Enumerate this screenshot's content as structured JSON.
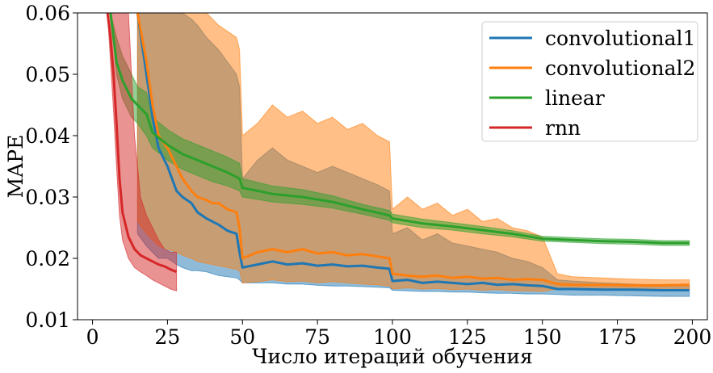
{
  "chart_data": {
    "type": "line",
    "title": "",
    "xlabel": "Число итераций обучения",
    "ylabel": "MAPE",
    "xlim": [
      -5,
      205
    ],
    "ylim": [
      0.01,
      0.06
    ],
    "xticks": [
      0,
      25,
      50,
      75,
      100,
      125,
      150,
      175,
      200
    ],
    "yticks": [
      0.01,
      0.02,
      0.03,
      0.04,
      0.05,
      0.06
    ],
    "xtick_labels": [
      "0",
      "25",
      "50",
      "75",
      "100",
      "125",
      "150",
      "175",
      "200"
    ],
    "ytick_labels": [
      "0.01",
      "0.02",
      "0.03",
      "0.04",
      "0.05",
      "0.06"
    ],
    "legend_position": "top-right",
    "grid": false,
    "series": [
      {
        "name": "convolutional1",
        "color": "#1f77b4",
        "x": [
          15,
          18,
          20,
          22,
          25,
          28,
          30,
          33,
          35,
          38,
          40,
          42,
          45,
          48,
          49,
          50,
          55,
          60,
          65,
          70,
          75,
          80,
          85,
          90,
          95,
          99,
          100,
          105,
          110,
          115,
          120,
          125,
          130,
          135,
          140,
          145,
          150,
          155,
          160,
          170,
          180,
          190,
          199
        ],
        "mean": [
          0.06,
          0.05,
          0.043,
          0.038,
          0.035,
          0.031,
          0.03,
          0.029,
          0.0275,
          0.0265,
          0.026,
          0.0255,
          0.0245,
          0.024,
          0.021,
          0.0185,
          0.019,
          0.0195,
          0.019,
          0.0192,
          0.0188,
          0.019,
          0.0187,
          0.0188,
          0.0185,
          0.0183,
          0.0163,
          0.0165,
          0.016,
          0.0162,
          0.016,
          0.0158,
          0.016,
          0.0157,
          0.0158,
          0.0156,
          0.0155,
          0.015,
          0.015,
          0.0149,
          0.0149,
          0.0148,
          0.0148
        ],
        "lower": [
          0.024,
          0.022,
          0.021,
          0.02,
          0.02,
          0.019,
          0.0185,
          0.018,
          0.018,
          0.0178,
          0.0175,
          0.0172,
          0.017,
          0.0168,
          0.0165,
          0.016,
          0.016,
          0.016,
          0.0158,
          0.0158,
          0.0156,
          0.0155,
          0.0155,
          0.0154,
          0.0153,
          0.0152,
          0.0148,
          0.0147,
          0.0146,
          0.0146,
          0.0145,
          0.0145,
          0.0144,
          0.0143,
          0.0143,
          0.0142,
          0.0142,
          0.0141,
          0.014,
          0.014,
          0.0139,
          0.0138,
          0.0138
        ],
        "upper": [
          0.06,
          0.06,
          0.06,
          0.06,
          0.06,
          0.06,
          0.06,
          0.059,
          0.058,
          0.056,
          0.055,
          0.054,
          0.052,
          0.05,
          0.048,
          0.033,
          0.036,
          0.038,
          0.036,
          0.035,
          0.034,
          0.035,
          0.034,
          0.033,
          0.032,
          0.031,
          0.024,
          0.025,
          0.023,
          0.024,
          0.0225,
          0.022,
          0.0215,
          0.021,
          0.02,
          0.0195,
          0.0185,
          0.0165,
          0.0163,
          0.016,
          0.0158,
          0.0156,
          0.0156
        ]
      },
      {
        "name": "convolutional2",
        "color": "#ff7f0e",
        "x": [
          15,
          18,
          20,
          22,
          25,
          28,
          30,
          33,
          35,
          38,
          40,
          42,
          45,
          48,
          49,
          50,
          55,
          60,
          65,
          70,
          75,
          80,
          85,
          90,
          95,
          99,
          100,
          105,
          110,
          115,
          120,
          125,
          130,
          135,
          140,
          145,
          150,
          155,
          160,
          170,
          180,
          190,
          199
        ],
        "mean": [
          0.06,
          0.052,
          0.045,
          0.04,
          0.038,
          0.035,
          0.033,
          0.031,
          0.03,
          0.0295,
          0.029,
          0.029,
          0.028,
          0.0275,
          0.025,
          0.02,
          0.021,
          0.0215,
          0.021,
          0.0215,
          0.0208,
          0.021,
          0.0205,
          0.0207,
          0.0203,
          0.02,
          0.0175,
          0.0172,
          0.017,
          0.0172,
          0.0168,
          0.017,
          0.0167,
          0.0168,
          0.0165,
          0.0166,
          0.0165,
          0.0158,
          0.0157,
          0.0157,
          0.0156,
          0.0156,
          0.0157
        ],
        "lower": [
          0.026,
          0.024,
          0.023,
          0.022,
          0.0215,
          0.021,
          0.0205,
          0.02,
          0.0195,
          0.0192,
          0.019,
          0.0188,
          0.0185,
          0.0182,
          0.018,
          0.016,
          0.0162,
          0.0165,
          0.0162,
          0.0163,
          0.016,
          0.0162,
          0.016,
          0.0158,
          0.0157,
          0.0155,
          0.015,
          0.0152,
          0.015,
          0.0151,
          0.0149,
          0.015,
          0.0148,
          0.0149,
          0.0147,
          0.0147,
          0.0146,
          0.015,
          0.015,
          0.015,
          0.015,
          0.0149,
          0.015
        ],
        "upper": [
          0.06,
          0.06,
          0.06,
          0.06,
          0.06,
          0.06,
          0.06,
          0.06,
          0.06,
          0.06,
          0.059,
          0.058,
          0.057,
          0.056,
          0.054,
          0.04,
          0.042,
          0.045,
          0.043,
          0.044,
          0.042,
          0.043,
          0.041,
          0.042,
          0.04,
          0.039,
          0.028,
          0.03,
          0.028,
          0.029,
          0.027,
          0.028,
          0.026,
          0.0265,
          0.025,
          0.0245,
          0.0235,
          0.0175,
          0.017,
          0.0168,
          0.0166,
          0.0165,
          0.0165
        ]
      },
      {
        "name": "linear",
        "color": "#2ca02c",
        "x": [
          6,
          8,
          10,
          13,
          15,
          18,
          20,
          25,
          30,
          35,
          40,
          45,
          49,
          50,
          55,
          60,
          70,
          80,
          90,
          99,
          100,
          110,
          120,
          130,
          140,
          150,
          160,
          170,
          180,
          190,
          199
        ],
        "mean": [
          0.06,
          0.052,
          0.049,
          0.046,
          0.045,
          0.0435,
          0.0405,
          0.0385,
          0.037,
          0.036,
          0.035,
          0.034,
          0.033,
          0.0315,
          0.031,
          0.0305,
          0.03,
          0.0292,
          0.028,
          0.027,
          0.0265,
          0.0257,
          0.0252,
          0.0246,
          0.024,
          0.0232,
          0.023,
          0.0228,
          0.0227,
          0.0225,
          0.0225
        ],
        "lower": [
          0.06,
          0.05,
          0.046,
          0.043,
          0.042,
          0.04,
          0.038,
          0.036,
          0.0345,
          0.0335,
          0.0325,
          0.0318,
          0.031,
          0.03,
          0.0296,
          0.0292,
          0.0288,
          0.0282,
          0.0272,
          0.0262,
          0.0258,
          0.025,
          0.0246,
          0.024,
          0.0235,
          0.0228,
          0.0226,
          0.0224,
          0.0223,
          0.0221,
          0.0221
        ],
        "upper": [
          0.06,
          0.056,
          0.053,
          0.05,
          0.048,
          0.047,
          0.043,
          0.041,
          0.0395,
          0.0385,
          0.0375,
          0.0365,
          0.0355,
          0.033,
          0.0324,
          0.0318,
          0.0312,
          0.0302,
          0.0288,
          0.0278,
          0.0272,
          0.0264,
          0.0258,
          0.0252,
          0.0245,
          0.0236,
          0.0234,
          0.0232,
          0.0231,
          0.0229,
          0.0229
        ],
        "lower_note_unused": null
      },
      {
        "name": "rnn",
        "color": "#d62728",
        "x": [
          5,
          6,
          7,
          8,
          9,
          10,
          12,
          14,
          16,
          18,
          20,
          22,
          24,
          26,
          28
        ],
        "mean": [
          0.06,
          0.056,
          0.05,
          0.042,
          0.033,
          0.0275,
          0.0235,
          0.0215,
          0.0205,
          0.02,
          0.0195,
          0.019,
          0.0187,
          0.0182,
          0.0178
        ],
        "lower": [
          0.06,
          0.052,
          0.044,
          0.035,
          0.027,
          0.023,
          0.02,
          0.0185,
          0.0178,
          0.0172,
          0.0165,
          0.016,
          0.0155,
          0.015,
          0.0147
        ],
        "upper": [
          0.06,
          0.06,
          0.06,
          0.06,
          0.06,
          0.06,
          0.06,
          0.04,
          0.03,
          0.027,
          0.025,
          0.023,
          0.0215,
          0.021,
          0.021
        ]
      }
    ]
  }
}
